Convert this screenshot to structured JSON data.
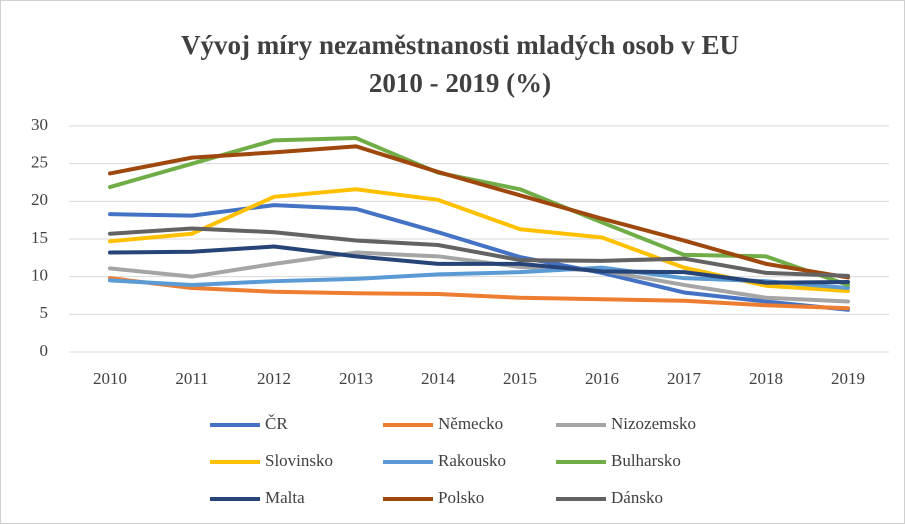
{
  "chart_data": {
    "type": "line",
    "title": [
      "Vývoj míry nezaměstnanosti mladých osob v EU",
      "2010 - 2019 (%)"
    ],
    "categories": [
      "2010",
      "2011",
      "2012",
      "2013",
      "2014",
      "2015",
      "2016",
      "2017",
      "2018",
      "2019"
    ],
    "ylim": [
      0,
      30
    ],
    "yticks": [
      0,
      5,
      10,
      15,
      20,
      25,
      30
    ],
    "grid": true,
    "legend": "bottom",
    "series": [
      {
        "name": "ČR",
        "color": "#4472c4",
        "values": [
          18.3,
          18.1,
          19.5,
          19.0,
          15.9,
          12.6,
          10.5,
          7.9,
          6.7,
          5.6
        ]
      },
      {
        "name": "Německo",
        "color": "#ed7d31",
        "values": [
          9.8,
          8.5,
          8.0,
          7.8,
          7.7,
          7.2,
          7.0,
          6.8,
          6.2,
          5.8
        ]
      },
      {
        "name": "Nizozemsko",
        "color": "#a5a5a5",
        "values": [
          11.1,
          10.0,
          11.7,
          13.2,
          12.7,
          11.3,
          10.8,
          8.9,
          7.2,
          6.7
        ]
      },
      {
        "name": "Slovinsko",
        "color": "#ffc000",
        "values": [
          14.7,
          15.7,
          20.6,
          21.6,
          20.2,
          16.3,
          15.2,
          11.2,
          8.8,
          8.1
        ]
      },
      {
        "name": "Rakousko",
        "color": "#5b9bd5",
        "values": [
          9.5,
          8.9,
          9.4,
          9.7,
          10.3,
          10.6,
          11.2,
          9.8,
          9.4,
          8.5
        ]
      },
      {
        "name": "Bulharsko",
        "color": "#70ad47",
        "values": [
          21.9,
          25.0,
          28.1,
          28.4,
          23.8,
          21.6,
          17.2,
          12.9,
          12.7,
          8.9
        ]
      },
      {
        "name": "Malta",
        "color": "#264478",
        "values": [
          13.2,
          13.3,
          14.0,
          12.7,
          11.7,
          11.7,
          10.7,
          10.6,
          9.2,
          9.3
        ]
      },
      {
        "name": "Polsko",
        "color": "#9e480e",
        "values": [
          23.7,
          25.8,
          26.5,
          27.3,
          23.9,
          20.8,
          17.7,
          14.8,
          11.7,
          9.9
        ]
      },
      {
        "name": "Dánsko",
        "color": "#636363",
        "values": [
          15.7,
          16.4,
          15.9,
          14.8,
          14.2,
          12.2,
          12.1,
          12.4,
          10.5,
          10.1
        ]
      }
    ]
  }
}
